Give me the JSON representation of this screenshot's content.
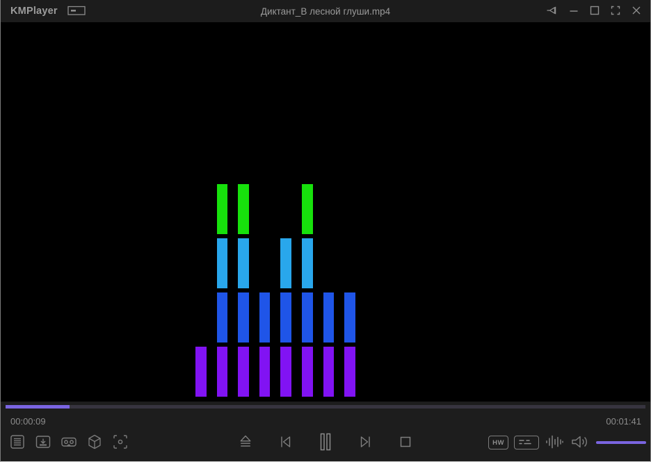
{
  "titlebar": {
    "app_name": "KMPlayer",
    "title": "Диктант_В лесной глуши.mp4",
    "window_controls": [
      "compact-mode",
      "pin",
      "minimize",
      "maximize",
      "fullscreen",
      "close"
    ]
  },
  "equalizer": {
    "columns": 8,
    "rows": [
      {
        "name": "green",
        "color": "#17e10c",
        "active_cols": [
          2,
          3,
          6
        ]
      },
      {
        "name": "cyan",
        "color": "#29a7ec",
        "active_cols": [
          2,
          3,
          5,
          6
        ]
      },
      {
        "name": "blue",
        "color": "#1f55e8",
        "active_cols": [
          2,
          3,
          4,
          5,
          6,
          7,
          8
        ]
      },
      {
        "name": "purple",
        "color": "#8113f3",
        "active_cols": [
          1,
          2,
          3,
          4,
          5,
          6,
          7,
          8
        ]
      }
    ]
  },
  "seekbar": {
    "elapsed": "00:00:09",
    "total": "00:01:41",
    "progress_percent": 10
  },
  "volume": {
    "level_percent": 100
  },
  "buttons": {
    "hw_label": "HW",
    "left_icons": [
      "playlist",
      "download",
      "vr-mode",
      "3d-mode",
      "snapshot"
    ],
    "transport_icons": [
      "eject",
      "previous",
      "pause",
      "next",
      "stop"
    ],
    "right_icons": [
      "hw-decoder",
      "subtitles",
      "equalizer",
      "volume"
    ]
  },
  "colors": {
    "accent_purple": "#7a64e0",
    "seek_track": "#37343f",
    "titlebar_bg": "#1c1c1c",
    "controlbar_bg": "#1d1d1d",
    "icon_gray": "#7c7c7c",
    "text_gray": "#8c8c8c"
  }
}
